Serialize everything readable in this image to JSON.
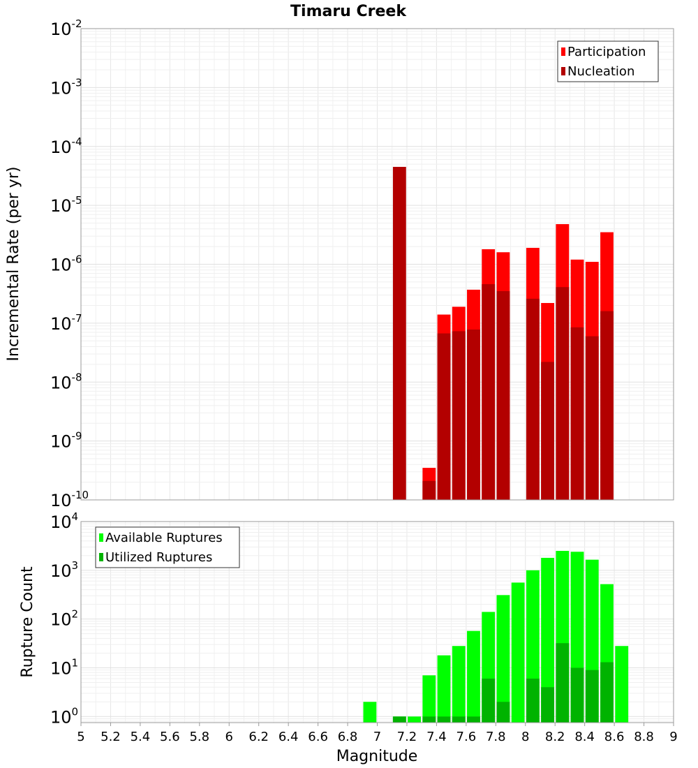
{
  "chart_data": [
    {
      "type": "bar",
      "title": "Timaru Creek",
      "xlabel": "Magnitude",
      "ylabel": "Incremental Rate (per yr)",
      "yscale": "log",
      "ylim": [
        1e-10,
        0.01
      ],
      "xlim": [
        5,
        9
      ],
      "bin_width": 0.1,
      "grid": true,
      "legend_position": "top-right",
      "series": [
        {
          "name": "Participation",
          "color": "#ff0000",
          "x": [
            7.35,
            7.45,
            7.55,
            7.65,
            7.75,
            7.85,
            8.05,
            8.15,
            8.25,
            8.35,
            8.45,
            8.55
          ],
          "values": [
            3.5e-10,
            1.4e-07,
            1.9e-07,
            3.7e-07,
            1.8e-06,
            1.6e-06,
            1.9e-06,
            2.2e-07,
            4.8e-06,
            1.2e-06,
            1.1e-06,
            3.5e-06
          ]
        },
        {
          "name": "Nucleation",
          "color": "#b30000",
          "x": [
            7.15,
            7.35,
            7.45,
            7.55,
            7.65,
            7.75,
            7.85,
            8.05,
            8.15,
            8.25,
            8.35,
            8.45,
            8.55
          ],
          "values": [
            4.5e-05,
            2.1e-10,
            6.7e-08,
            7.3e-08,
            7.8e-08,
            4.6e-07,
            3.5e-07,
            2.6e-07,
            2.2e-08,
            4.1e-07,
            8.5e-08,
            6e-08,
            1.6e-07
          ]
        }
      ]
    },
    {
      "type": "bar",
      "title": "",
      "xlabel": "Magnitude",
      "ylabel": "Rupture Count",
      "yscale": "log",
      "ylim": [
        0.75,
        10000
      ],
      "xlim": [
        5,
        9
      ],
      "bin_width": 0.1,
      "grid": true,
      "legend_position": "top-left",
      "x_ticks": [
        "5",
        "5.2",
        "5.4",
        "5.6",
        "5.8",
        "6",
        "6.2",
        "6.4",
        "6.6",
        "6.8",
        "7",
        "7.2",
        "7.4",
        "7.6",
        "7.8",
        "8",
        "8.2",
        "8.4",
        "8.6",
        "8.8",
        "9"
      ],
      "series": [
        {
          "name": "Available Ruptures",
          "color": "#00ff00",
          "x": [
            6.95,
            7.15,
            7.25,
            7.35,
            7.45,
            7.55,
            7.65,
            7.75,
            7.85,
            7.95,
            8.05,
            8.15,
            8.25,
            8.35,
            8.45,
            8.55,
            8.65
          ],
          "values": [
            2,
            1,
            1,
            7,
            18,
            28,
            57,
            140,
            310,
            560,
            1000,
            1800,
            2500,
            2400,
            1650,
            520,
            28
          ]
        },
        {
          "name": "Utilized Ruptures",
          "color": "#00b300",
          "x": [
            7.15,
            7.35,
            7.45,
            7.55,
            7.65,
            7.75,
            7.85,
            8.05,
            8.15,
            8.25,
            8.35,
            8.45,
            8.55
          ],
          "values": [
            1,
            1,
            1,
            1,
            1,
            6,
            2,
            6,
            4,
            32,
            10,
            9,
            13
          ]
        }
      ]
    }
  ]
}
